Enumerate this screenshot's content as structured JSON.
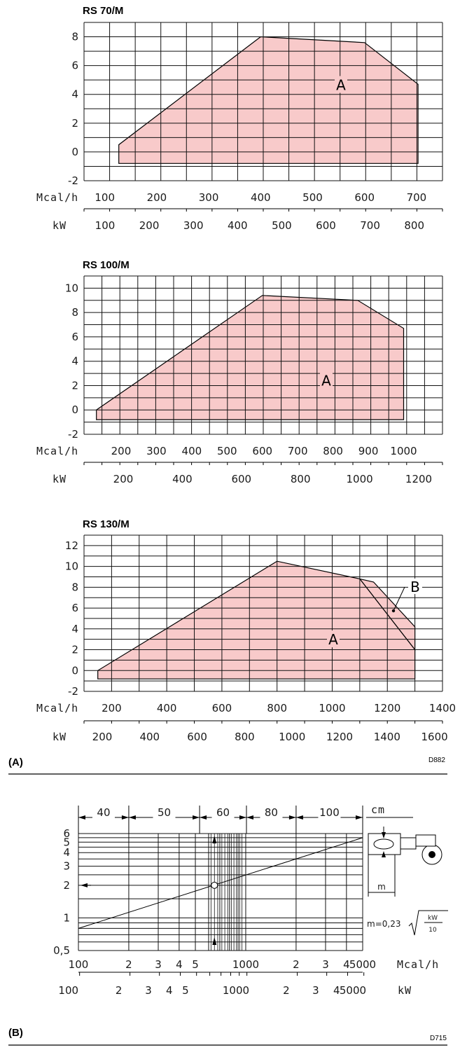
{
  "chart_data": [
    {
      "type": "area",
      "title": "RS 70/M",
      "xlabel": "Mcal/h",
      "x2label": "kW",
      "ylim": [
        -2,
        9
      ],
      "yticks": [
        -2,
        0,
        2,
        4,
        6,
        8
      ],
      "xlim": [
        60,
        750
      ],
      "xticks": [
        100,
        200,
        300,
        400,
        500,
        600,
        700
      ],
      "x2ticks": [
        100,
        200,
        300,
        400,
        500,
        600,
        700,
        800
      ],
      "grid": true,
      "series": [
        {
          "name": "A",
          "x": [
            127,
            127,
            400,
            600,
            703,
            703
          ],
          "y": [
            -0.8,
            0.5,
            8,
            7.6,
            4.7,
            -0.8
          ]
        }
      ]
    },
    {
      "type": "area",
      "title": "RS 100/M",
      "xlabel": "Mcal/h",
      "x2label": "kW",
      "ylim": [
        -2,
        11
      ],
      "yticks": [
        -2,
        0,
        2,
        4,
        6,
        8,
        10
      ],
      "xlim": [
        95,
        1110
      ],
      "xticks": [
        200,
        300,
        400,
        500,
        600,
        700,
        800,
        900,
        1000
      ],
      "x2ticks": [
        200,
        400,
        600,
        800,
        1000,
        1200
      ],
      "grid": true,
      "series": [
        {
          "name": "A",
          "x": [
            130,
            130,
            600,
            870,
            1000,
            1000
          ],
          "y": [
            -0.8,
            0,
            9.4,
            9,
            6.7,
            -0.8
          ]
        }
      ]
    },
    {
      "type": "area",
      "title": "RS 130/M",
      "xlabel": "Mcal/h",
      "x2label": "kW",
      "ylim": [
        -2,
        13
      ],
      "yticks": [
        -2,
        0,
        2,
        4,
        6,
        8,
        10,
        12
      ],
      "xlim": [
        100,
        1400
      ],
      "xticks": [
        200,
        400,
        600,
        800,
        1000,
        1200,
        1400
      ],
      "x2ticks": [
        200,
        400,
        600,
        800,
        1000,
        1200,
        1400,
        1600
      ],
      "grid": true,
      "series": [
        {
          "name": "A",
          "x": [
            150,
            150,
            800,
            1100,
            1300,
            1300
          ],
          "y": [
            -0.8,
            0,
            10.5,
            8.8,
            2,
            -0.8
          ]
        },
        {
          "name": "B",
          "x": [
            1100,
            1150,
            1300,
            1300
          ],
          "y": [
            8.8,
            8.5,
            4.2,
            2
          ]
        }
      ]
    },
    {
      "type": "line",
      "xscale": "log",
      "yscale": "log",
      "xlabel": "Mcal/h",
      "x2label": "kW",
      "ylabel": "cm",
      "xlim": [
        100,
        5000
      ],
      "ylim": [
        0.5,
        6
      ],
      "xticks": [
        100,
        200,
        300,
        400,
        500,
        1000,
        2000,
        3000,
        4000,
        5000
      ],
      "xtick_labels": [
        "100",
        "2",
        "3",
        "4",
        "5",
        "1000",
        "2",
        "3",
        "4",
        "5000"
      ],
      "x2ticks": [
        116,
        232,
        349,
        465,
        581,
        1163,
        2326,
        3488,
        4651,
        5814
      ],
      "x2tick_labels": [
        "100",
        "2",
        "3",
        "4",
        "5",
        "1000",
        "2",
        "3",
        "4",
        "5000"
      ],
      "yticks": [
        0.5,
        1,
        2,
        3,
        4,
        5,
        6
      ],
      "ytick_labels": [
        "0,5",
        "1",
        "2",
        "3",
        "4",
        "5",
        "6"
      ],
      "bands": [
        "40",
        "50",
        "60",
        "80",
        "100"
      ],
      "band_bounds": [
        100,
        200,
        530,
        1010,
        2000,
        5000
      ],
      "grid": true,
      "series": [
        {
          "x": [
            100,
            5000
          ],
          "y": [
            0.8,
            5.5
          ]
        }
      ],
      "marked_point": {
        "x": 650,
        "y": 2
      },
      "formula": "m=0,23",
      "formula_num": "kW",
      "formula_den": "10",
      "inset_label": "m"
    }
  ],
  "labels": {
    "panel_a": "(A)",
    "panel_b": "(B)",
    "code_a": "D882",
    "code_b": "D715"
  },
  "colors": {
    "fill": "#f8caca",
    "line": "#000000"
  }
}
